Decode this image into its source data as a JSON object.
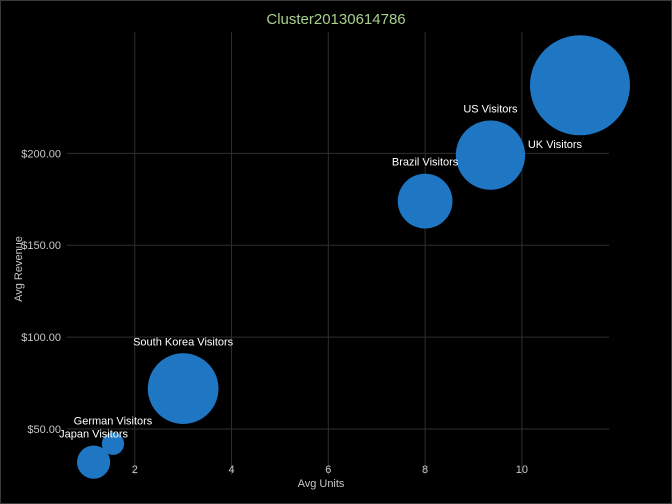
{
  "chart_data": {
    "type": "scatter",
    "variant": "bubble",
    "title": "Cluster20130614786",
    "xlabel": "Avg Units",
    "ylabel": "Avg Revenue",
    "xlim": [
      0.6,
      11.8
    ],
    "ylim": [
      25,
      266
    ],
    "x_ticks": [
      {
        "value": 2,
        "label": "2"
      },
      {
        "value": 4,
        "label": "4"
      },
      {
        "value": 6,
        "label": "6"
      },
      {
        "value": 8,
        "label": "8"
      },
      {
        "value": 10,
        "label": "10"
      }
    ],
    "y_ticks": [
      {
        "value": 50,
        "label": "$50.00"
      },
      {
        "value": 100,
        "label": "$100.00"
      },
      {
        "value": 150,
        "label": "$150.00"
      },
      {
        "value": 200,
        "label": "$200.00"
      }
    ],
    "grid": true,
    "bubble_color": "#1f77c4",
    "label_color": "#ffffff",
    "title_color": "#a8d08d",
    "background": "#000000",
    "points": [
      {
        "label": "UK Visitors",
        "x": 11.2,
        "y": 237,
        "size": 100
      },
      {
        "label": "US Visitors",
        "x": 9.35,
        "y": 199,
        "size": 48
      },
      {
        "label": "Brazil Visitors",
        "x": 8.0,
        "y": 174,
        "size": 30
      },
      {
        "label": "South Korea Visitors",
        "x": 3.0,
        "y": 72,
        "size": 50
      },
      {
        "label": "German Visitors",
        "x": 1.55,
        "y": 42,
        "size": 5
      },
      {
        "label": "Japan Visitors",
        "x": 1.15,
        "y": 32,
        "size": 11
      }
    ]
  }
}
